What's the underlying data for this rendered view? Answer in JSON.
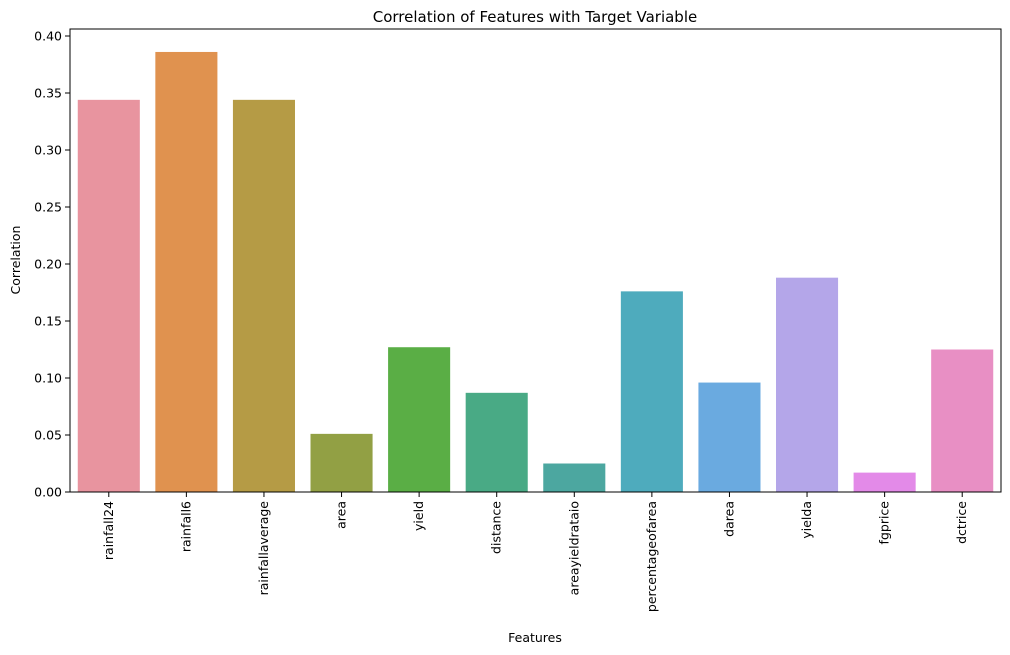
{
  "chart_data": {
    "type": "bar",
    "title": "Correlation of Features with Target Variable",
    "xlabel": "Features",
    "ylabel": "Correlation",
    "categories": [
      "rainfall24",
      "rainfall6",
      "rainfallaverage",
      "area",
      "yield",
      "distance",
      "areayieldrataio",
      "percentageofarea",
      "darea",
      "yielda",
      "fgprice",
      "dctrice"
    ],
    "values": [
      0.344,
      0.386,
      0.344,
      0.051,
      0.127,
      0.087,
      0.025,
      0.176,
      0.096,
      0.188,
      0.017,
      0.125
    ],
    "colors": [
      "#e8949f",
      "#e0924f",
      "#b59b45",
      "#92a044",
      "#5aae45",
      "#49aa85",
      "#4ca7a0",
      "#4eabbd",
      "#6aaae0",
      "#b4a6e9",
      "#e38ae8",
      "#e88fc4"
    ],
    "ylim": [
      0,
      0.4
    ],
    "yticks": [
      "0.00",
      "0.05",
      "0.10",
      "0.15",
      "0.20",
      "0.25",
      "0.30",
      "0.35",
      "0.40"
    ],
    "grid": false,
    "legend": "none"
  }
}
